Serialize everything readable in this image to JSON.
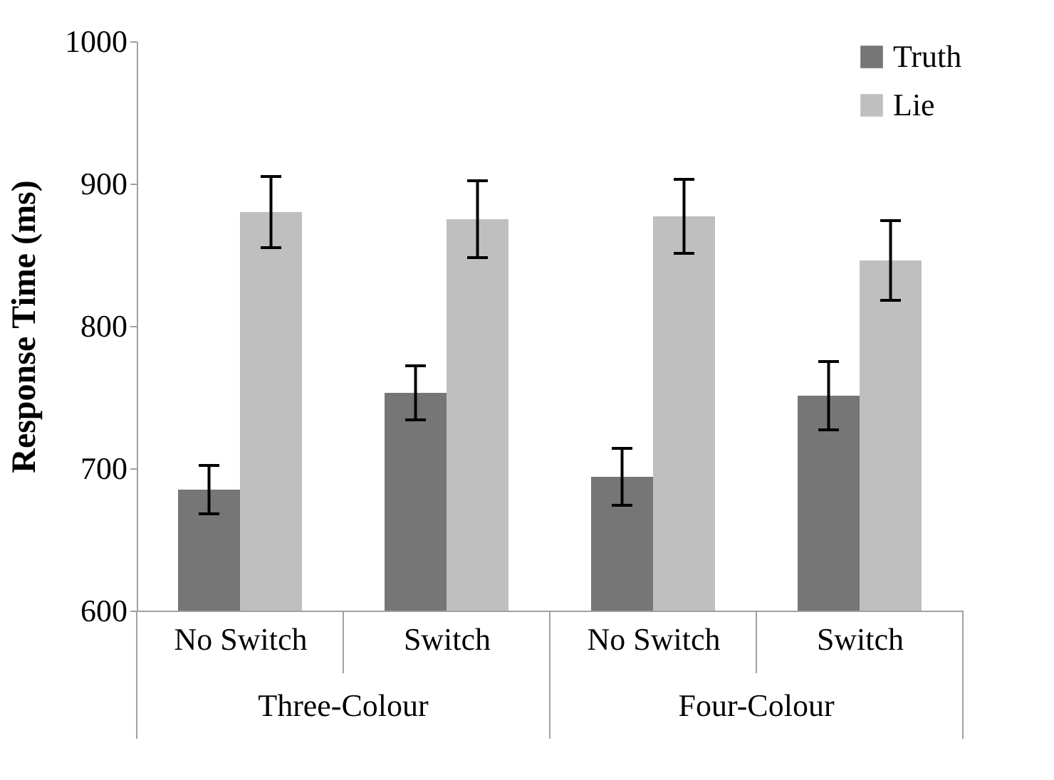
{
  "chart_data": {
    "type": "bar",
    "ylabel": "Response Time (ms)",
    "categories": [
      "No Switch",
      "Switch",
      "No Switch",
      "Switch"
    ],
    "series": [
      {
        "name": "Truth",
        "color": "#767676",
        "values": [
          685,
          753,
          694,
          751
        ],
        "errors": [
          17,
          19,
          20,
          24
        ]
      },
      {
        "name": "Lie",
        "color": "#bfbfbf",
        "values": [
          880,
          875,
          877,
          846
        ],
        "errors": [
          25,
          27,
          26,
          28
        ]
      }
    ],
    "annotations": [
      "Three-Colour",
      "Four-Colour"
    ],
    "ylim": [
      600,
      1000
    ],
    "yticks": [
      600,
      700,
      800,
      900,
      1000
    ],
    "grid": false,
    "legend": "top right"
  }
}
